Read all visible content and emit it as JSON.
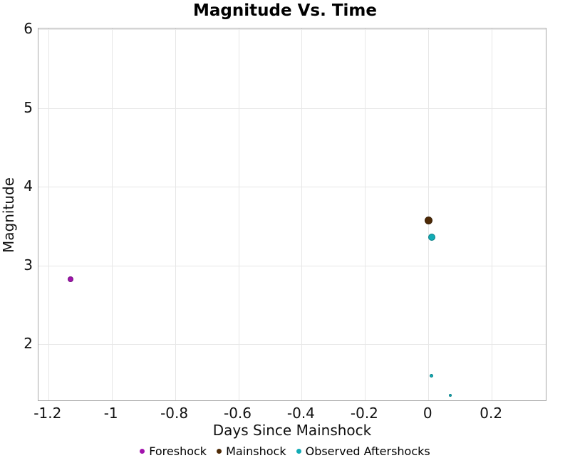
{
  "title": "Magnitude Vs. Time",
  "chart_data": {
    "type": "scatter",
    "title": "Magnitude Vs. Time",
    "xlabel": "Days Since Mainshock",
    "ylabel": "Magnitude",
    "xlim": [
      -1.231,
      0.375
    ],
    "ylim": [
      1.27,
      6.01
    ],
    "x_ticks": [
      -1.2,
      -1,
      -0.8,
      -0.6,
      -0.4,
      -0.2,
      0,
      0.2
    ],
    "x_tick_labels": [
      "-1.2",
      "-1",
      "-0.8",
      "-0.6",
      "-0.4",
      "-0.2",
      "0",
      "0.2"
    ],
    "y_ticks": [
      2,
      3,
      4,
      5,
      6
    ],
    "y_tick_labels": [
      "2",
      "3",
      "4",
      "5",
      "6"
    ],
    "grid": true,
    "legend_position": "bottom-center",
    "series": [
      {
        "name": "Foreshock",
        "color": "#a213ad",
        "edge_color": "#70107c",
        "points": [
          {
            "x": -1.13,
            "y": 2.83,
            "size": 8
          }
        ]
      },
      {
        "name": "Mainshock",
        "color": "#4e2a06",
        "edge_color": "#351c03",
        "points": [
          {
            "x": 0.0,
            "y": 3.57,
            "size": 11
          }
        ]
      },
      {
        "name": "Observed Aftershocks",
        "color": "#12abb5",
        "edge_color": "#0a7f86",
        "points": [
          {
            "x": 0.01,
            "y": 3.36,
            "size": 10
          },
          {
            "x": 0.01,
            "y": 1.6,
            "size": 5
          },
          {
            "x": 0.07,
            "y": 1.35,
            "size": 4
          }
        ]
      }
    ],
    "style": {
      "grid_color": "#e7e7e7",
      "frame_color": "#a8a8a8",
      "background": "#ffffff",
      "text_color": "#111111"
    }
  }
}
